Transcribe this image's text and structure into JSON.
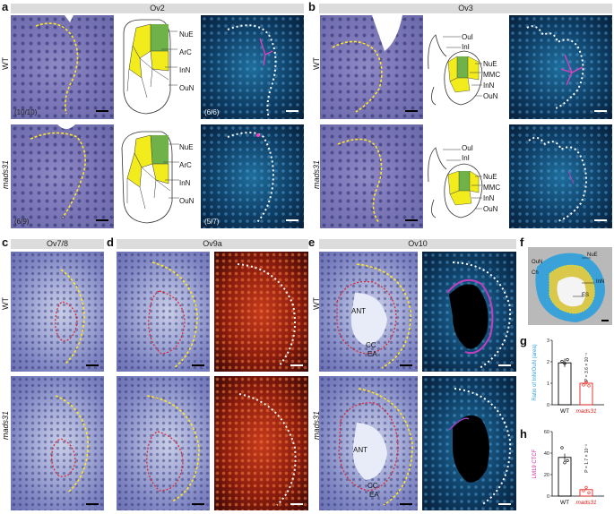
{
  "panels": {
    "a": "a",
    "b": "b",
    "c": "c",
    "d": "d",
    "e": "e",
    "f": "f",
    "g": "g",
    "h": "h"
  },
  "stages": {
    "ov2": "Ov2",
    "ov3": "Ov3",
    "ov78": "Ov7/8",
    "ov9a": "Ov9a",
    "ov10": "Ov10"
  },
  "rows": {
    "wt": "WT",
    "mutant": "mads31"
  },
  "counts": {
    "a_wt_lm": "(10/10)",
    "a_wt_fl": "(6/6)",
    "a_mut_lm": "(6/9)",
    "a_mut_fl": "(5/7)"
  },
  "diagram_labels": {
    "a_wt": [
      "NuE",
      "ArC",
      "InN",
      "OuN"
    ],
    "a_mut": [
      "NuE",
      "ArC",
      "InN",
      "OuN"
    ],
    "b_wt": [
      "OuI",
      "InI",
      "NuE",
      "MMC",
      "InN",
      "OuN"
    ],
    "b_mut": [
      "OuI",
      "InI",
      "NuE",
      "MMC",
      "InN",
      "OuN"
    ]
  },
  "section_labels": {
    "e_wt": [
      "ANT",
      "CC",
      "EA"
    ],
    "e_mut": [
      "ANT",
      "CC",
      "EA"
    ]
  },
  "inset_f": {
    "labels": [
      "NuE",
      "OuN",
      "Ch",
      "InN",
      "ES"
    ]
  },
  "colors": {
    "green_cell": "#6fb24a",
    "yellow_cell": "#f2ec1c",
    "wt_bar": "#000000",
    "mut_bar": "#e8221b",
    "ylabel_g": "#2b9fd8",
    "ylabel_h": "#d62aa8"
  },
  "chart_data": [
    {
      "type": "bar",
      "panel": "g",
      "categories": [
        "WT",
        "mads31"
      ],
      "values": [
        1.95,
        1.0
      ],
      "points": [
        [
          2.02,
          1.92,
          2.1
        ],
        [
          0.92,
          1.05,
          0.88
        ]
      ],
      "ylabel": "Ratio of InN/OuN (area)",
      "ylim": [
        0,
        3
      ],
      "yticks": [
        "0",
        "1",
        "2",
        "3"
      ],
      "annotation": "P = 3.6 × 10⁻⁴"
    },
    {
      "type": "bar",
      "panel": "h",
      "categories": [
        "WT",
        "mads31"
      ],
      "values": [
        36,
        6
      ],
      "points": [
        [
          45,
          31,
          33
        ],
        [
          5,
          8,
          3
        ]
      ],
      "ylabel": "LM19 CTCF",
      "ylim": [
        0,
        60
      ],
      "yticks": [
        "0",
        "20",
        "40",
        "60"
      ],
      "annotation": "P = 1.7 × 10⁻³"
    }
  ]
}
